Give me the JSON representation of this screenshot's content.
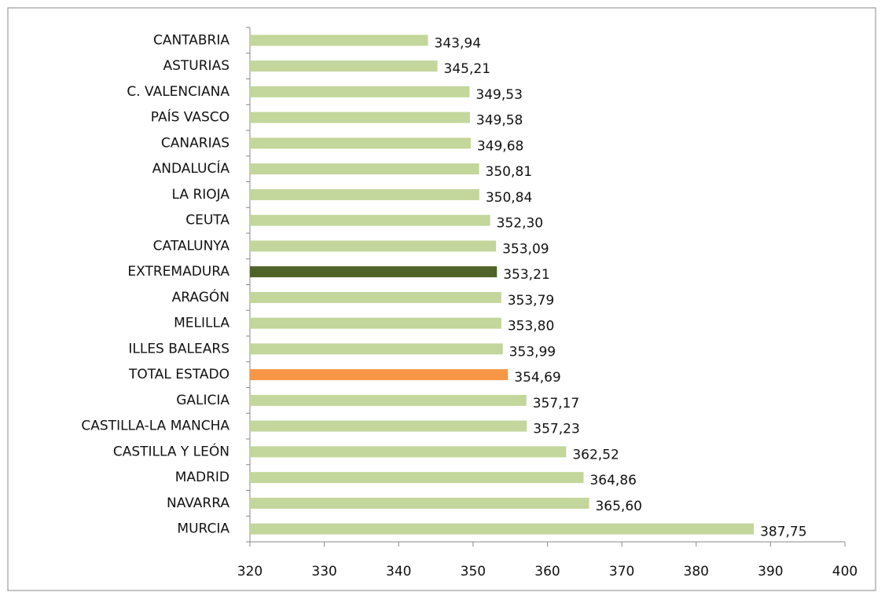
{
  "chart_data": {
    "type": "bar",
    "orientation": "horizontal",
    "categories": [
      "CANTABRIA",
      "ASTURIAS",
      "C. VALENCIANA",
      "PAÍS VASCO",
      "CANARIAS",
      "ANDALUCÍA",
      "LA RIOJA",
      "CEUTA",
      "CATALUNYA",
      "EXTREMADURA",
      "ARAGÓN",
      "MELILLA",
      "ILLES BALEARS",
      "TOTAL ESTADO",
      "GALICIA",
      "CASTILLA-LA MANCHA",
      "CASTILLA Y LEÓN",
      "MADRID",
      "NAVARRA",
      "MURCIA"
    ],
    "values": [
      343.94,
      345.21,
      349.53,
      349.58,
      349.68,
      350.81,
      350.84,
      352.3,
      353.09,
      353.21,
      353.79,
      353.8,
      353.99,
      354.69,
      357.17,
      357.23,
      362.52,
      364.86,
      365.6,
      387.75
    ],
    "value_labels": [
      "343,94",
      "345,21",
      "349,53",
      "349,58",
      "349,68",
      "350,81",
      "350,84",
      "352,30",
      "353,09",
      "353,21",
      "353,79",
      "353,80",
      "353,99",
      "354,69",
      "357,17",
      "357,23",
      "362,52",
      "364,86",
      "365,60",
      "387,75"
    ],
    "colors": [
      "#c3d69b",
      "#c3d69b",
      "#c3d69b",
      "#c3d69b",
      "#c3d69b",
      "#c3d69b",
      "#c3d69b",
      "#c3d69b",
      "#c3d69b",
      "#4f6228",
      "#c3d69b",
      "#c3d69b",
      "#c3d69b",
      "#f79646",
      "#c3d69b",
      "#c3d69b",
      "#c3d69b",
      "#c3d69b",
      "#c3d69b",
      "#c3d69b"
    ],
    "xlim": [
      320,
      400
    ],
    "xticks": [
      320,
      330,
      340,
      350,
      360,
      370,
      380,
      390,
      400
    ],
    "grid": false
  }
}
